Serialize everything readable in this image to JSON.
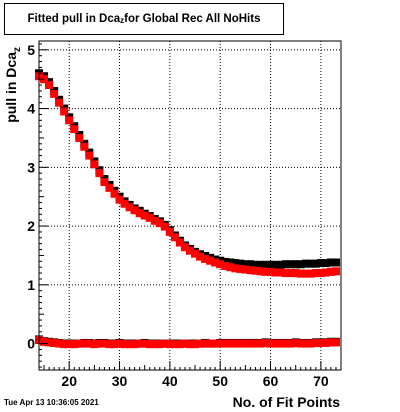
{
  "title": {
    "prefix": "Fitted pull in Dca",
    "subscript": "z",
    "suffix": " for Global Rec All NoHits"
  },
  "timestamp": "Tue Apr 13 10:36:05 2021",
  "xlabel": "No. of Fit Points",
  "ylabel": {
    "prefix": "pull in Dca",
    "subscript": "z"
  },
  "colors": {
    "series_black": "#000000",
    "series_red": "#ff0000",
    "grid": "#000000"
  },
  "chart_data": {
    "type": "scatter",
    "title": "Fitted pull in Dca_z for Global Rec All NoHits",
    "xlabel": "No. of Fit Points",
    "ylabel": "pull in Dca_z",
    "xlim": [
      14,
      74
    ],
    "ylim": [
      -0.45,
      5.15
    ],
    "x_ticks": [
      20,
      30,
      40,
      50,
      60,
      70
    ],
    "y_ticks": [
      0,
      1,
      2,
      3,
      4,
      5
    ],
    "grid": true,
    "series": [
      {
        "color": "#000000",
        "x": [
          14,
          15,
          16,
          17,
          18,
          19,
          20,
          21,
          22,
          23,
          24,
          25,
          26,
          27,
          28,
          29,
          30,
          31,
          32,
          33,
          34,
          35,
          36,
          37,
          38,
          39,
          40,
          41,
          42,
          43,
          44,
          45,
          46,
          47,
          48,
          49,
          50,
          51,
          52,
          53,
          54,
          55,
          56,
          57,
          58,
          59,
          60,
          61,
          62,
          63,
          64,
          65,
          66,
          67,
          68,
          69,
          70,
          71,
          72,
          73
        ],
        "y": [
          4.6,
          4.55,
          4.45,
          4.3,
          4.15,
          4.0,
          3.85,
          3.7,
          3.55,
          3.4,
          3.25,
          3.1,
          2.95,
          2.8,
          2.7,
          2.6,
          2.5,
          2.42,
          2.36,
          2.3,
          2.26,
          2.21,
          2.17,
          2.12,
          2.08,
          2.02,
          1.93,
          1.84,
          1.75,
          1.67,
          1.61,
          1.56,
          1.52,
          1.49,
          1.46,
          1.43,
          1.41,
          1.39,
          1.38,
          1.37,
          1.36,
          1.35,
          1.35,
          1.34,
          1.34,
          1.34,
          1.34,
          1.34,
          1.34,
          1.35,
          1.35,
          1.35,
          1.35,
          1.36,
          1.36,
          1.36,
          1.37,
          1.37,
          1.38,
          1.38
        ]
      },
      {
        "color": "#ff0000",
        "x": [
          14,
          15,
          16,
          17,
          18,
          19,
          20,
          21,
          22,
          23,
          24,
          25,
          26,
          27,
          28,
          29,
          30,
          31,
          32,
          33,
          34,
          35,
          36,
          37,
          38,
          39,
          40,
          41,
          42,
          43,
          44,
          45,
          46,
          47,
          48,
          49,
          50,
          51,
          52,
          53,
          54,
          55,
          56,
          57,
          58,
          59,
          60,
          61,
          62,
          63,
          64,
          65,
          66,
          67,
          68,
          69,
          70,
          71,
          72,
          73
        ],
        "y": [
          4.55,
          4.5,
          4.4,
          4.25,
          4.1,
          3.95,
          3.8,
          3.65,
          3.5,
          3.35,
          3.2,
          3.05,
          2.9,
          2.75,
          2.65,
          2.55,
          2.45,
          2.38,
          2.32,
          2.27,
          2.22,
          2.18,
          2.14,
          2.09,
          2.05,
          1.99,
          1.9,
          1.81,
          1.72,
          1.64,
          1.58,
          1.53,
          1.48,
          1.44,
          1.41,
          1.38,
          1.35,
          1.32,
          1.3,
          1.28,
          1.27,
          1.26,
          1.25,
          1.24,
          1.23,
          1.22,
          1.22,
          1.21,
          1.21,
          1.2,
          1.2,
          1.2,
          1.19,
          1.19,
          1.19,
          1.2,
          1.2,
          1.21,
          1.22,
          1.23
        ]
      },
      {
        "color": "#000000",
        "x": [
          14,
          15,
          16,
          17,
          18,
          19,
          20,
          21,
          22,
          23,
          24,
          25,
          26,
          27,
          28,
          29,
          30,
          31,
          32,
          33,
          34,
          35,
          36,
          37,
          38,
          39,
          40,
          41,
          42,
          43,
          44,
          45,
          46,
          47,
          48,
          49,
          50,
          51,
          52,
          53,
          54,
          55,
          56,
          57,
          58,
          59,
          60,
          61,
          62,
          63,
          64,
          65,
          66,
          67,
          68,
          69,
          70,
          71,
          72,
          73
        ],
        "y": [
          0.07,
          0.04,
          0.03,
          0.02,
          0.01,
          0.0,
          0.0,
          0.0,
          0.0,
          0.01,
          0.01,
          0.0,
          0.01,
          0.01,
          0.0,
          0.0,
          0.01,
          0.0,
          0.0,
          0.0,
          0.0,
          0.01,
          0.0,
          0.0,
          0.0,
          0.0,
          0.0,
          0.0,
          0.0,
          0.0,
          0.0,
          0.0,
          0.0,
          0.01,
          0.0,
          0.0,
          0.01,
          0.01,
          0.01,
          0.01,
          0.01,
          0.01,
          0.01,
          0.01,
          0.01,
          0.02,
          0.01,
          0.01,
          0.01,
          0.01,
          0.01,
          0.02,
          0.01,
          0.01,
          0.01,
          0.02,
          0.02,
          0.02,
          0.03,
          0.03
        ]
      },
      {
        "color": "#ff0000",
        "x": [
          14,
          15,
          16,
          17,
          18,
          19,
          20,
          21,
          22,
          23,
          24,
          25,
          26,
          27,
          28,
          29,
          30,
          31,
          32,
          33,
          34,
          35,
          36,
          37,
          38,
          39,
          40,
          41,
          42,
          43,
          44,
          45,
          46,
          47,
          48,
          49,
          50,
          51,
          52,
          53,
          54,
          55,
          56,
          57,
          58,
          59,
          60,
          61,
          62,
          63,
          64,
          65,
          66,
          67,
          68,
          69,
          70,
          71,
          72,
          73
        ],
        "y": [
          0.06,
          0.03,
          0.02,
          0.01,
          0.0,
          -0.01,
          -0.01,
          -0.01,
          0.0,
          0.0,
          0.0,
          -0.01,
          0.0,
          0.0,
          -0.01,
          -0.01,
          0.0,
          -0.01,
          -0.01,
          -0.01,
          0.0,
          0.0,
          -0.01,
          -0.01,
          -0.01,
          0.0,
          -0.01,
          -0.01,
          -0.01,
          0.0,
          -0.01,
          -0.01,
          0.0,
          0.0,
          0.0,
          0.0,
          0.0,
          0.0,
          0.0,
          0.0,
          0.0,
          0.0,
          0.0,
          0.0,
          0.0,
          0.01,
          0.0,
          0.0,
          0.0,
          0.0,
          0.0,
          0.01,
          0.0,
          0.0,
          0.0,
          0.01,
          0.01,
          0.01,
          0.02,
          0.02
        ]
      }
    ]
  }
}
